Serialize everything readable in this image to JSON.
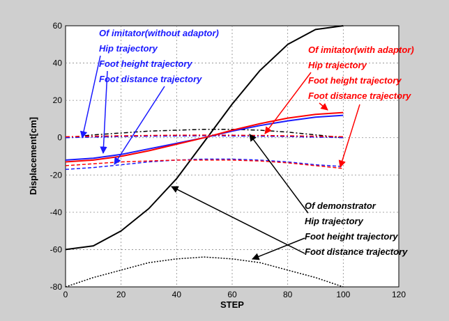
{
  "chart_data": {
    "type": "line",
    "xlabel": "STEP",
    "ylabel": "Displacement[cm]",
    "xlim": [
      0,
      120
    ],
    "ylim": [
      -80,
      60
    ],
    "xticks": [
      "0",
      "20",
      "40",
      "60",
      "80",
      "100",
      "120"
    ],
    "yticks": [
      "60",
      "40",
      "20",
      "0",
      "-20",
      "-40",
      "-60",
      "-80"
    ],
    "grid": true,
    "colors": {
      "demonstrator": "#000000",
      "without_adaptor": "#1a1aff",
      "with_adaptor": "#ff0000"
    },
    "series": [
      {
        "group": "demonstrator",
        "style": "solid",
        "x": [
          0,
          10,
          20,
          30,
          40,
          50,
          60,
          70,
          80,
          90,
          100
        ],
        "values": [
          -60,
          -58,
          -50,
          -38,
          -22,
          -2,
          18,
          36,
          50,
          58,
          60
        ]
      },
      {
        "group": "demonstrator",
        "style": "dotted",
        "x": [
          0,
          10,
          20,
          30,
          40,
          50,
          60,
          70,
          80,
          90,
          100
        ],
        "values": [
          -80,
          -75,
          -71,
          -67,
          -65,
          -64,
          -65,
          -67,
          -71,
          -75,
          -80
        ]
      },
      {
        "group": "demonstrator",
        "style": "dashdot",
        "x": [
          0,
          10,
          20,
          30,
          40,
          50,
          60,
          70,
          80,
          90,
          100
        ],
        "values": [
          0,
          1.5,
          2.5,
          3.5,
          4,
          4.5,
          4.5,
          4,
          3,
          1.5,
          0
        ]
      },
      {
        "group": "without_adaptor",
        "style": "solid",
        "x": [
          0,
          10,
          20,
          30,
          40,
          50,
          60,
          70,
          80,
          90,
          100
        ],
        "values": [
          -12,
          -11,
          -9,
          -6,
          -3,
          0,
          3.5,
          6.5,
          9,
          11,
          12
        ]
      },
      {
        "group": "with_adaptor",
        "style": "solid",
        "x": [
          0,
          10,
          20,
          30,
          40,
          50,
          60,
          70,
          80,
          90,
          100
        ],
        "values": [
          -13,
          -12,
          -10,
          -7,
          -3.5,
          0,
          4,
          7.5,
          10.5,
          12.5,
          13.5
        ]
      },
      {
        "group": "without_adaptor",
        "style": "dashed",
        "x": [
          0,
          10,
          20,
          30,
          40,
          50,
          60,
          70,
          80,
          90,
          100
        ],
        "values": [
          -17,
          -16,
          -14.5,
          -13,
          -12,
          -11.5,
          -11.5,
          -12,
          -13,
          -14.5,
          -15.5
        ]
      },
      {
        "group": "with_adaptor",
        "style": "dashed",
        "x": [
          0,
          10,
          20,
          30,
          40,
          50,
          60,
          70,
          80,
          90,
          100
        ],
        "values": [
          -15,
          -14,
          -13,
          -12.5,
          -12,
          -12,
          -12,
          -12.5,
          -13.5,
          -15,
          -16.5
        ]
      },
      {
        "group": "without_adaptor",
        "style": "dashdot",
        "x": [
          0,
          10,
          20,
          30,
          40,
          50,
          60,
          70,
          80,
          90,
          100
        ],
        "values": [
          0,
          0.3,
          0.6,
          0.8,
          0.9,
          1,
          0.9,
          0.8,
          0.6,
          0.3,
          0
        ]
      },
      {
        "group": "with_adaptor",
        "style": "dashdot",
        "x": [
          0,
          10,
          20,
          30,
          40,
          50,
          60,
          70,
          80,
          90,
          100
        ],
        "values": [
          0.5,
          0.8,
          1,
          1.2,
          1.3,
          1.4,
          1.3,
          1.2,
          1,
          0.8,
          0.5
        ]
      }
    ],
    "annotations": {
      "blue": [
        "Of imitator(without adaptor)",
        "Hip trajectory",
        "Foot height trajectory",
        "Foot distance trajectory"
      ],
      "red": [
        "Of imitator(with adaptor)",
        "Hip trajectory",
        "Foot height trajectory",
        "Foot distance trajectory"
      ],
      "black": [
        "Of demonstrator",
        "Hip trajectory",
        "Foot height trajectory",
        "Foot distance trajectory"
      ]
    }
  }
}
